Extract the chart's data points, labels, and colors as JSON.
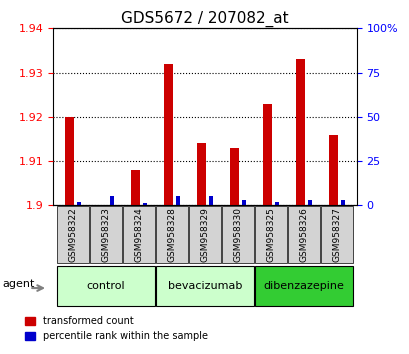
{
  "title": "GDS5672 / 207082_at",
  "samples": [
    "GSM958322",
    "GSM958323",
    "GSM958324",
    "GSM958328",
    "GSM958329",
    "GSM958330",
    "GSM958325",
    "GSM958326",
    "GSM958327"
  ],
  "red_values": [
    1.92,
    1.9,
    1.908,
    1.932,
    1.914,
    1.913,
    1.923,
    1.933,
    1.916
  ],
  "blue_values": [
    2.0,
    5.0,
    1.5,
    5.0,
    5.0,
    3.0,
    2.0,
    3.0,
    3.0
  ],
  "groups": [
    {
      "label": "control",
      "indices": [
        0,
        1,
        2
      ],
      "color": "#ccffcc"
    },
    {
      "label": "bevacizumab",
      "indices": [
        3,
        4,
        5
      ],
      "color": "#ccffcc"
    },
    {
      "label": "dibenzazepine",
      "indices": [
        6,
        7,
        8
      ],
      "color": "#33cc33"
    }
  ],
  "ylim_left": [
    1.9,
    1.94
  ],
  "ylim_right": [
    0,
    100
  ],
  "yticks_left": [
    1.9,
    1.91,
    1.92,
    1.93,
    1.94
  ],
  "yticks_right": [
    0,
    25,
    50,
    75,
    100
  ],
  "red_color": "#cc0000",
  "blue_color": "#0000cc",
  "bg_sample_area": "#d3d3d3",
  "agent_label": "agent",
  "legend_items": [
    "transformed count",
    "percentile rank within the sample"
  ]
}
